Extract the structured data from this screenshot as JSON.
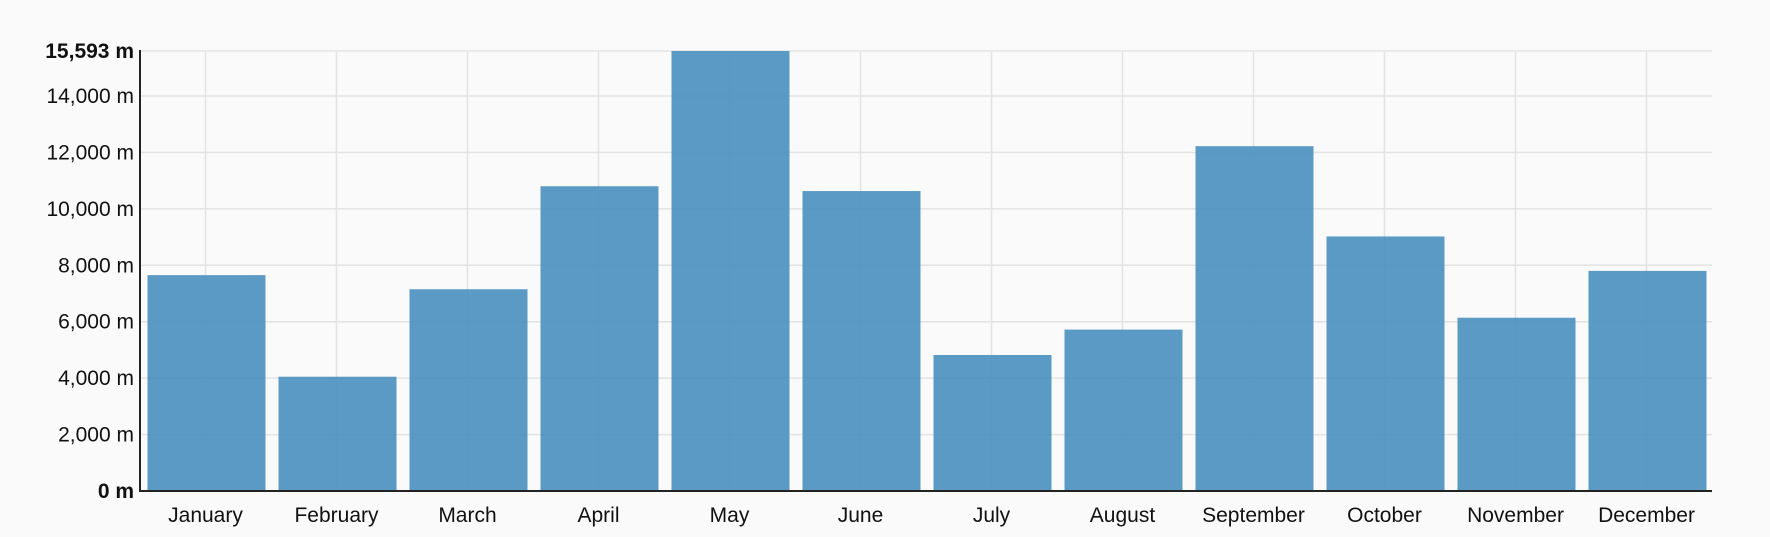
{
  "chart_data": {
    "type": "bar",
    "categories": [
      "January",
      "February",
      "March",
      "April",
      "May",
      "June",
      "July",
      "August",
      "September",
      "October",
      "November",
      "December"
    ],
    "values": [
      7650,
      4050,
      7150,
      10800,
      15593,
      10630,
      4820,
      5720,
      12220,
      9020,
      6140,
      7800
    ],
    "ylim": [
      0,
      15593
    ],
    "yticks": [
      0,
      2000,
      4000,
      6000,
      8000,
      10000,
      12000,
      14000,
      15593
    ],
    "ytick_labels": [
      "0 m",
      "2,000 m",
      "4,000 m",
      "6,000 m",
      "8,000 m",
      "10,000 m",
      "12,000 m",
      "14,000 m",
      "15,593 m"
    ],
    "bold_ticks": [
      "0 m",
      "15,593 m"
    ],
    "grid": true,
    "bar_color": "#4a8fc0"
  }
}
